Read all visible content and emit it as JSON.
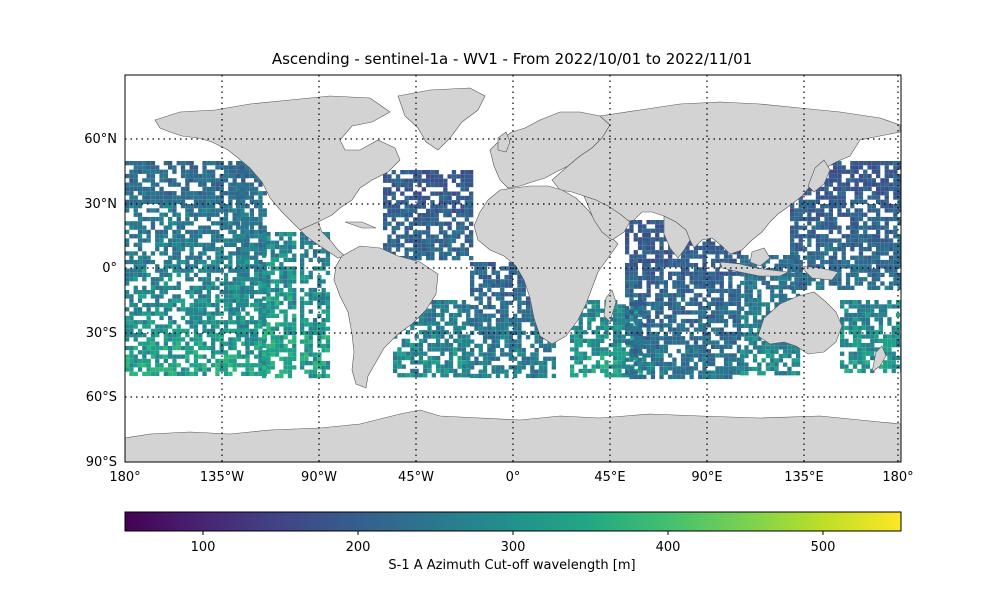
{
  "title": "Ascending - sentinel-1a - WV1 - From 2022/10/01 to 2022/11/01",
  "map": {
    "projection": "PlateCarree",
    "lon_range": [
      -180,
      180
    ],
    "lat_range": [
      -90,
      90
    ],
    "land_color": "#d3d3d3",
    "coastline_color": "#555555",
    "gridlines": "dotted",
    "lat_ticks": [
      "90°S",
      "60°S",
      "30°S",
      "0°",
      "30°N",
      "60°N"
    ],
    "lon_ticks": [
      "180°",
      "135°W",
      "90°W",
      "45°W",
      "0°",
      "45°E",
      "90°E",
      "135°E",
      "180°"
    ]
  },
  "colorbar": {
    "colormap": "viridis",
    "range": [
      50,
      550
    ],
    "ticks": [
      "100",
      "200",
      "300",
      "400",
      "500"
    ],
    "label": "S-1 A Azimuth Cut-off wavelength [m]"
  }
}
